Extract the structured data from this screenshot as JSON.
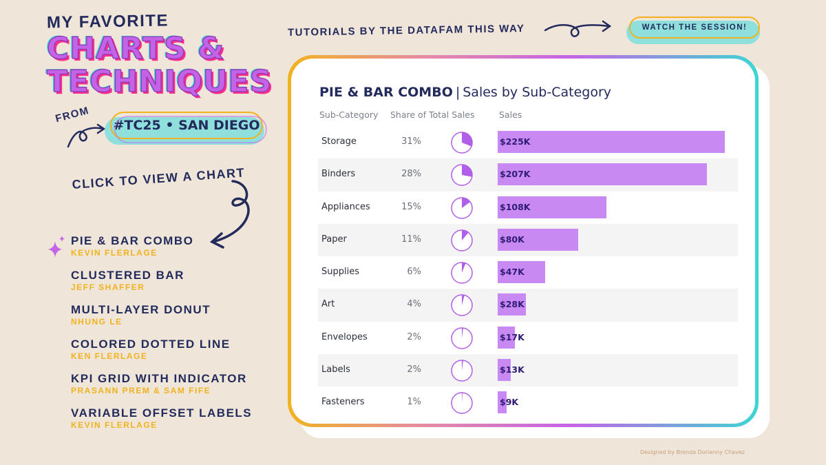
{
  "header": {
    "line1": "MY FAVORITE",
    "line2": "CHARTS &",
    "line3": "TECHNIQUES",
    "from": "FROM",
    "badge": "#TC25 • SAN DIEGO",
    "tutorials": "TUTORIALS BY THE DATAFAM THIS WAY",
    "watch_button": "WATCH THE SESSION!"
  },
  "sidebar": {
    "prompt": "CLICK TO VIEW A CHART",
    "items": [
      {
        "title": "PIE & BAR COMBO",
        "author": "KEVIN FLERLAGE",
        "selected": true
      },
      {
        "title": "CLUSTERED BAR",
        "author": "JEFF SHAFFER"
      },
      {
        "title": "MULTI-LAYER DONUT",
        "author": "NHUNG LE"
      },
      {
        "title": "COLORED DOTTED LINE",
        "author": "KEN FLERLAGE"
      },
      {
        "title": "KPI GRID WITH INDICATOR",
        "author": "PRASANN PREM & SAM FIFE"
      },
      {
        "title": "VARIABLE OFFSET LABELS",
        "author": "KEVIN FLERLAGE"
      }
    ]
  },
  "chart": {
    "title_strong": "PIE & BAR COMBO",
    "title_sep": "|",
    "title_sub": "Sales by Sub-Category",
    "headers": [
      "Sub-Category",
      "Share of Total Sales",
      "Sales"
    ]
  },
  "chart_data": {
    "type": "bar",
    "categories": [
      "Storage",
      "Binders",
      "Appliances",
      "Paper",
      "Supplies",
      "Art",
      "Envelopes",
      "Labels",
      "Fasteners"
    ],
    "share_labels": [
      "31%",
      "28%",
      "15%",
      "11%",
      "6%",
      "4%",
      "2%",
      "2%",
      "1%"
    ],
    "share": [
      0.31,
      0.28,
      0.15,
      0.11,
      0.06,
      0.04,
      0.02,
      0.02,
      0.01
    ],
    "value_labels": [
      "$225K",
      "$207K",
      "$108K",
      "$80K",
      "$47K",
      "$28K",
      "$17K",
      "$13K",
      "$9K"
    ],
    "values": [
      225,
      207,
      108,
      80,
      47,
      28,
      17,
      13,
      9
    ],
    "xlim": [
      0,
      225
    ]
  },
  "colors": {
    "navy": "#232a5c",
    "purple": "#c563e6",
    "bar_purple": "#c989f2",
    "pink": "#ff2d8a",
    "teal": "#3cd6d3",
    "gold": "#f0b31e",
    "background": "#efe5d8"
  },
  "credit": "Designed by Brenda Dorianny Chavez"
}
